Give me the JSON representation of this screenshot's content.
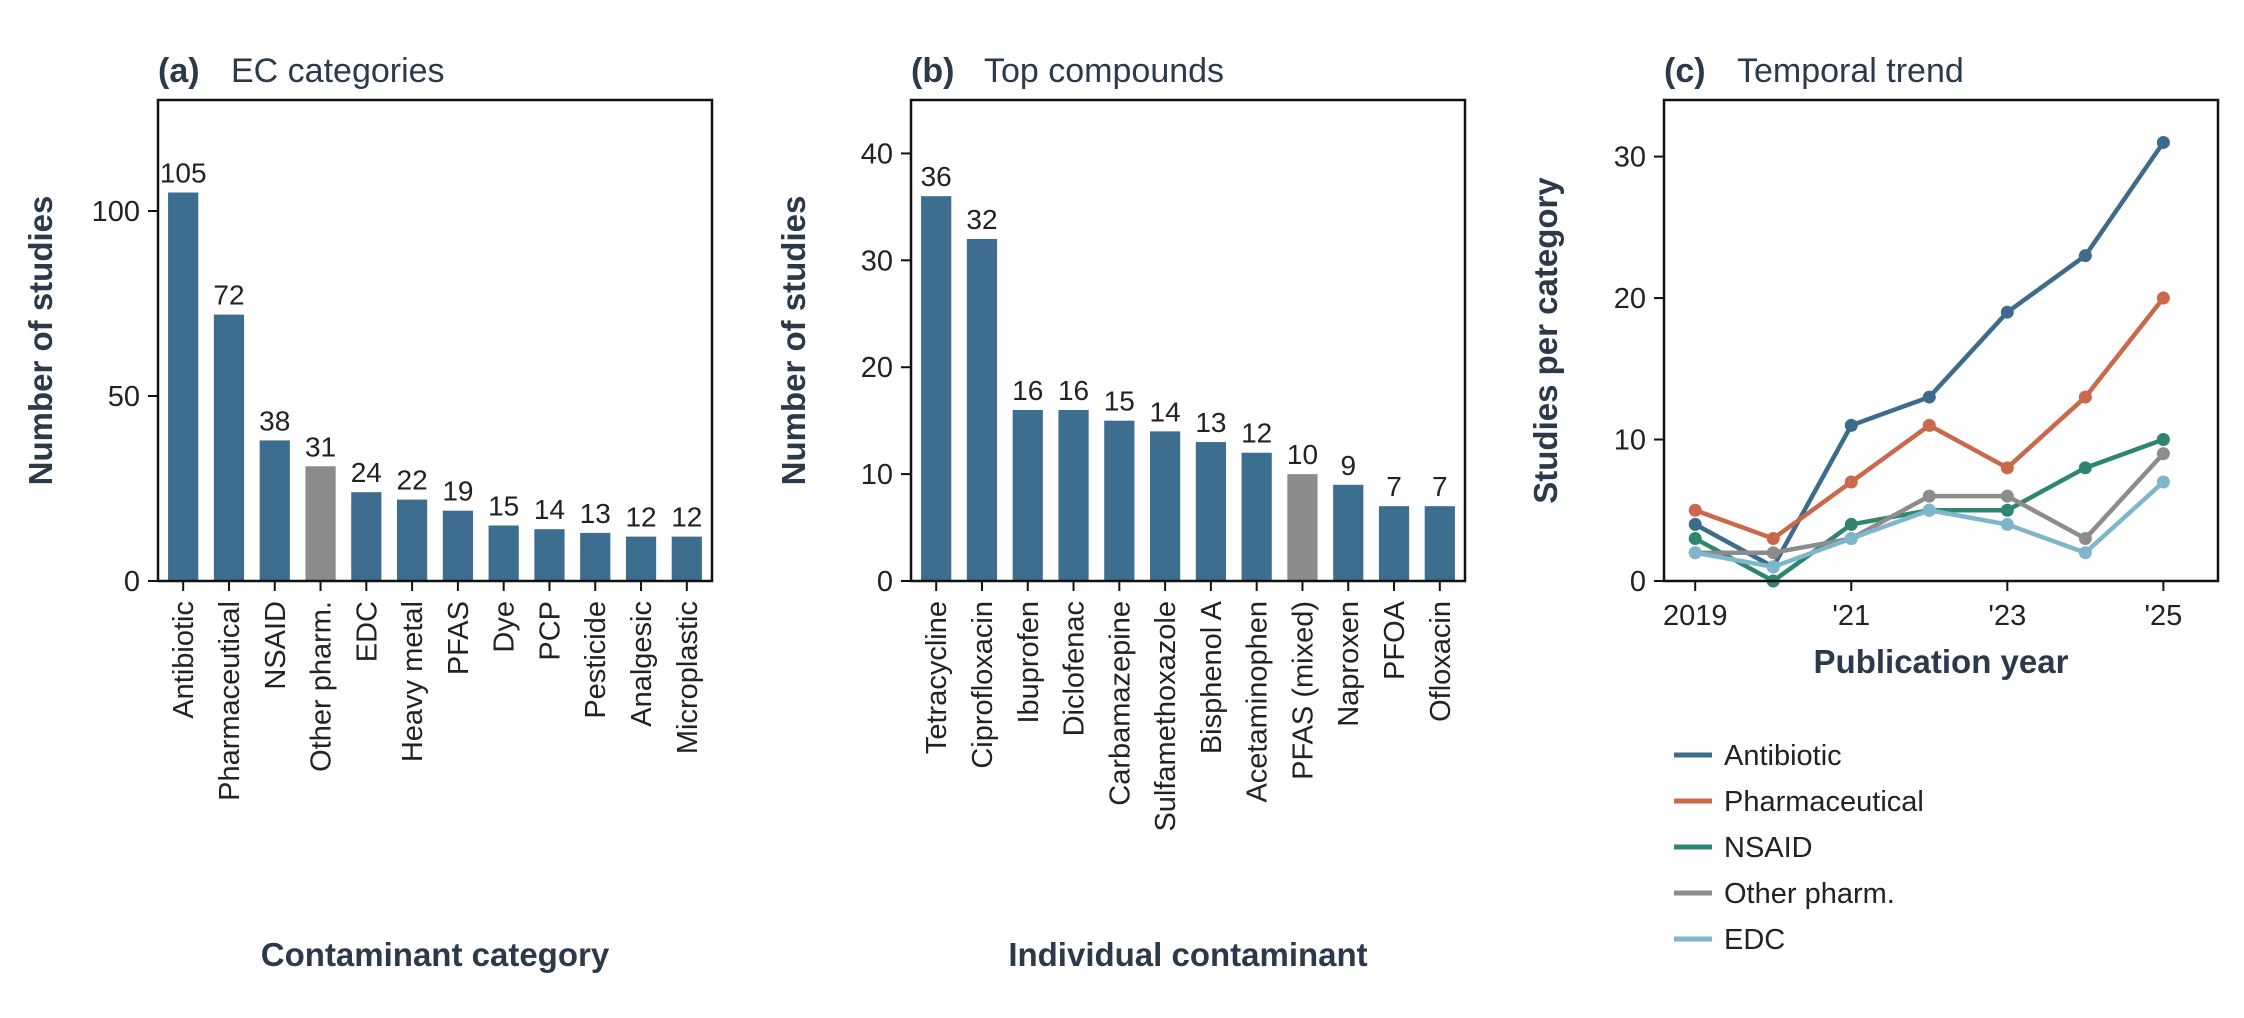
{
  "colors": {
    "bar_main": "#3d6e8f",
    "bar_gray": "#8c8c8c",
    "frame": "#111111",
    "series": [
      "#3d6b8c",
      "#c9684a",
      "#2f8570",
      "#8c8c8c",
      "#7fb6cb"
    ]
  },
  "chart_data": [
    {
      "type": "bar",
      "panel": "(a)",
      "title": "EC categories",
      "xlabel": "Contaminant category",
      "ylabel": "Number of studies",
      "ylim": [
        0,
        130
      ],
      "yticks": [
        0,
        50,
        100
      ],
      "categories": [
        "Antibiotic",
        "Pharmaceutical",
        "NSAID",
        "Other pharm.",
        "EDC",
        "Heavy metal",
        "PFAS",
        "Dye",
        "PCP",
        "Pesticide",
        "Analgesic",
        "Microplastic"
      ],
      "values": [
        105,
        72,
        38,
        31,
        24,
        22,
        19,
        15,
        14,
        13,
        12,
        12
      ],
      "highlight_gray": [
        "Other pharm."
      ]
    },
    {
      "type": "bar",
      "panel": "(b)",
      "title": "Top compounds",
      "xlabel": "Individual contaminant",
      "ylabel": "Number of studies",
      "ylim": [
        0,
        45
      ],
      "yticks": [
        0,
        10,
        20,
        30,
        40
      ],
      "categories": [
        "Tetracycline",
        "Ciprofloxacin",
        "Ibuprofen",
        "Diclofenac",
        "Carbamazepine",
        "Sulfamethoxazole",
        "Bisphenol A",
        "Acetaminophen",
        "PFAS (mixed)",
        "Naproxen",
        "PFOA",
        "Ofloxacin"
      ],
      "values": [
        36,
        32,
        16,
        16,
        15,
        14,
        13,
        12,
        10,
        9,
        7,
        7
      ],
      "highlight_gray": [
        "PFAS (mixed)"
      ]
    },
    {
      "type": "line",
      "panel": "(c)",
      "title": "Temporal trend",
      "xlabel": "Publication year",
      "ylabel": "Studies per category",
      "x": [
        2019,
        2020,
        2021,
        2022,
        2023,
        2024,
        2025
      ],
      "xticks": [
        2019,
        2021,
        2023,
        2025
      ],
      "xticklabels": [
        "2019",
        "'21",
        "'23",
        "'25"
      ],
      "xlim": [
        2018.6,
        2025.7
      ],
      "ylim": [
        0,
        34
      ],
      "yticks": [
        0,
        10,
        20,
        30
      ],
      "legend": "below",
      "series": [
        {
          "name": "Antibiotic",
          "values": [
            4,
            1,
            11,
            13,
            19,
            23,
            31
          ]
        },
        {
          "name": "Pharmaceutical",
          "values": [
            5,
            3,
            7,
            11,
            8,
            13,
            20
          ]
        },
        {
          "name": "NSAID",
          "values": [
            3,
            0,
            4,
            5,
            5,
            8,
            10
          ]
        },
        {
          "name": "Other pharm.",
          "values": [
            2,
            2,
            3,
            6,
            6,
            3,
            9
          ]
        },
        {
          "name": "EDC",
          "values": [
            2,
            1,
            3,
            5,
            4,
            2,
            7
          ]
        }
      ]
    }
  ]
}
